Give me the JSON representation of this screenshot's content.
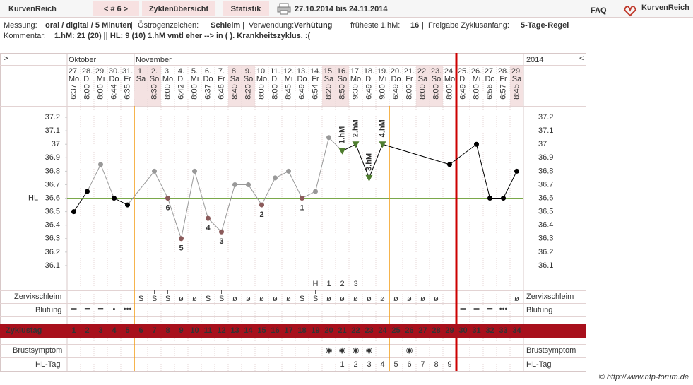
{
  "header": {
    "app": "KurvenReich",
    "cycle_nav": "< # 6 >",
    "tabs": [
      "Zyklenübersicht",
      "Statistik"
    ],
    "period": "27.10.2014 bis 24.11.2014",
    "faq": "FAQ",
    "logo": "KurvenReich"
  },
  "info": {
    "fields": [
      {
        "label": "Messung:",
        "value": "oral / digital / 5 Minuten"
      },
      {
        "label": "Östrogenzeichen:",
        "value": "Schleim"
      },
      {
        "label": "Verwendung:",
        "value": "Verhütung"
      },
      {
        "label": "früheste 1.hM:",
        "value": 16
      },
      {
        "label": "Freigabe Zyklusanfang:",
        "value": "5-Tage-Regel"
      }
    ],
    "separator": "|",
    "comment_label": "Kommentar:",
    "comment": "1.hM: 21 (20) || HL: 9 (10) 1.hM vmtl eher --> in ( ). Krankheitszyklus. :("
  },
  "chart_data": {
    "type": "line",
    "nav_left": ">",
    "nav_right": "<",
    "months": [
      {
        "label": "Oktober",
        "day": 1
      },
      {
        "label": "November",
        "day": 6
      }
    ],
    "year": 2014,
    "days": [
      1,
      2,
      3,
      4,
      5,
      6,
      7,
      8,
      9,
      10,
      11,
      12,
      13,
      14,
      15,
      16,
      17,
      18,
      19,
      20,
      21,
      22,
      23,
      24,
      25,
      26,
      27,
      28,
      29,
      30,
      31,
      32,
      33,
      34
    ],
    "dates": [
      "27.",
      "28.",
      "29.",
      "30.",
      "31.",
      "1.",
      "2.",
      "3.",
      "4.",
      "5.",
      "6.",
      "7.",
      "8.",
      "9.",
      "10.",
      "11.",
      "12.",
      "13.",
      "14.",
      "15.",
      "16.",
      "17.",
      "18.",
      "19.",
      "20.",
      "21.",
      "22.",
      "23.",
      "24.",
      "25.",
      "26.",
      "27.",
      "28.",
      "29."
    ],
    "weekdays": [
      "Mo",
      "Di",
      "Mi",
      "Do",
      "Fr",
      "Sa",
      "So",
      "Mo",
      "Di",
      "Mi",
      "Do",
      "Fr",
      "Sa",
      "So",
      "Mo",
      "Di",
      "Mi",
      "Do",
      "Fr",
      "Sa",
      "So",
      "Mo",
      "Di",
      "Mi",
      "Do",
      "Fr",
      "Sa",
      "So",
      "Mo",
      "Di",
      "Mi",
      "Do",
      "Fr",
      "Sa"
    ],
    "times": [
      "6:37",
      "8:00",
      "8:00",
      "6:44",
      "6:35",
      null,
      "8:30",
      "8:00",
      "6:42",
      "8:00",
      "6:37",
      "6:46",
      "8:40",
      "8:20",
      "8:00",
      "8:00",
      "8:45",
      "6:49",
      "6:54",
      "8:20",
      "8:50",
      "9:30",
      "6:49",
      "9:00",
      "6:49",
      "8:00",
      "8:00",
      "8:00",
      "8:00",
      "6:49",
      "8:00",
      "6:56",
      "6:57",
      "8:45"
    ],
    "temperature": {
      "x": [
        1,
        2,
        3,
        4,
        5,
        7,
        8,
        9,
        10,
        11,
        12,
        13,
        14,
        15,
        16,
        17,
        18,
        19,
        20,
        21,
        22,
        23,
        24,
        29,
        31,
        32,
        33,
        34
      ],
      "values": [
        36.5,
        36.65,
        36.85,
        36.6,
        36.55,
        36.8,
        36.6,
        36.3,
        36.8,
        36.45,
        36.35,
        36.7,
        36.7,
        36.55,
        36.75,
        36.8,
        36.6,
        36.65,
        37.05,
        36.95,
        37.0,
        36.75,
        37.0,
        36.85,
        37.0,
        36.6,
        36.6,
        36.8
      ],
      "colors": [
        "#000000",
        "#000000",
        "#999999",
        "#000000",
        "#000000",
        "#999999",
        "#8b5a5a",
        "#8b5a5a",
        "#999999",
        "#8b5a5a",
        "#8b5a5a",
        "#999999",
        "#999999",
        "#8b5a5a",
        "#999999",
        "#999999",
        "#8b5a5a",
        "#999999",
        "#999999",
        "#4e7d2e",
        "#4e7d2e",
        "#4e7d2e",
        "#4e7d2e",
        "#000000",
        "#000000",
        "#000000",
        "#000000",
        "#000000"
      ],
      "labels": [
        null,
        null,
        null,
        null,
        null,
        null,
        6,
        5,
        null,
        4,
        3,
        null,
        null,
        2,
        null,
        null,
        1,
        null,
        null,
        "1.hM",
        "2.hM",
        "3.hM",
        "4.hM",
        null,
        null,
        null,
        null,
        null
      ]
    },
    "ylim": [
      36.0,
      37.3
    ],
    "yticks": [
      36.1,
      36.2,
      36.3,
      36.4,
      36.5,
      36.6,
      36.7,
      36.8,
      36.9,
      37,
      37.1,
      37.2
    ],
    "hl": {
      "label": "HL",
      "value": 36.6,
      "color": "#7aa84a"
    },
    "fertile_window": [
      6,
      24
    ],
    "next_cycle_start": 30,
    "zervix_label": "Zervixschleim",
    "zervix_counts": [
      null,
      null,
      null,
      null,
      null,
      null,
      null,
      null,
      null,
      null,
      null,
      null,
      null,
      null,
      null,
      null,
      null,
      null,
      "H",
      1,
      2,
      3,
      null,
      null,
      null,
      null,
      null,
      null,
      null,
      null,
      null,
      null,
      null,
      null
    ],
    "zervix_plus": [
      null,
      null,
      null,
      null,
      null,
      "+",
      "+",
      "+",
      null,
      null,
      null,
      "+",
      null,
      null,
      null,
      null,
      null,
      "+",
      "+",
      null,
      null,
      null,
      null,
      null,
      null,
      null,
      null,
      null,
      null,
      null,
      null,
      null,
      null,
      null
    ],
    "zervix": [
      null,
      null,
      null,
      null,
      null,
      "S",
      "S",
      "S",
      "ø",
      "ø",
      "S",
      "S",
      "ø",
      "ø",
      "ø",
      "ø",
      "ø",
      "S",
      "S",
      "ø",
      "ø",
      "ø",
      "ø",
      "ø",
      "ø",
      "ø",
      "ø",
      "ø",
      null,
      null,
      null,
      null,
      null,
      "ø"
    ],
    "bleeding_label": "Blutung",
    "bleeding": [
      "═",
      "━",
      "━",
      "▪",
      "•••",
      null,
      null,
      null,
      null,
      null,
      null,
      null,
      null,
      null,
      null,
      null,
      null,
      null,
      null,
      null,
      null,
      null,
      null,
      null,
      null,
      null,
      null,
      null,
      null,
      "═",
      "═",
      "━",
      "•••",
      null
    ],
    "cycle_day_label": "Zyklustag",
    "breast_label": "Brustsymptom",
    "breast": [
      null,
      null,
      null,
      null,
      null,
      null,
      null,
      null,
      null,
      null,
      null,
      null,
      null,
      null,
      null,
      null,
      null,
      null,
      null,
      "◉",
      "◉",
      "◉",
      "◉",
      null,
      null,
      "◉",
      null,
      null,
      null,
      null,
      null,
      null,
      null,
      null
    ],
    "hl_day_label": "HL-Tag",
    "hl_days": [
      null,
      null,
      null,
      null,
      null,
      null,
      null,
      null,
      null,
      null,
      null,
      null,
      null,
      null,
      null,
      null,
      null,
      null,
      null,
      null,
      1,
      2,
      3,
      4,
      5,
      6,
      7,
      8,
      9,
      null,
      null,
      null,
      null,
      null
    ]
  },
  "footer": "© http://www.nfp-forum.de"
}
